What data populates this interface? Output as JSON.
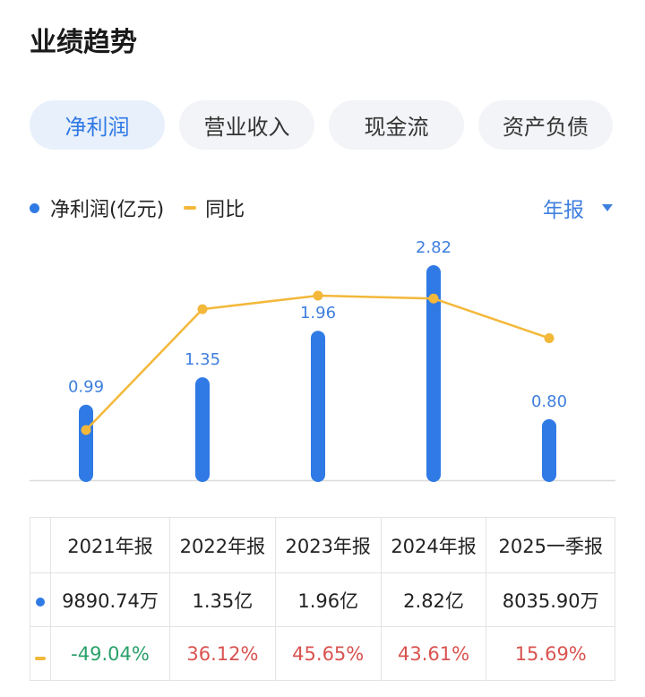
{
  "title": "业绩趋势",
  "tabs": [
    {
      "label": "净利润",
      "active": true
    },
    {
      "label": "营业收入",
      "active": false
    },
    {
      "label": "现金流",
      "active": false
    },
    {
      "label": "资产负债",
      "active": false
    }
  ],
  "legend": {
    "bar_label": "净利润(亿元)",
    "line_label": "同比"
  },
  "period_selector": "年报",
  "colors": {
    "bar": "#2f7ae5",
    "line": "#f3b83a",
    "positive": "#d9534f",
    "negative": "#2aa06a",
    "accent": "#3f7fde"
  },
  "chart_data": {
    "type": "bar",
    "categories": [
      "2021年报",
      "2022年报",
      "2023年报",
      "2024年报",
      "2025一季报"
    ],
    "series": [
      {
        "name": "净利润(亿元)",
        "type": "bar",
        "values": [
          0.99,
          1.35,
          1.96,
          2.82,
          0.8
        ],
        "labels": [
          "0.99",
          "1.35",
          "1.96",
          "2.82",
          "0.80"
        ]
      },
      {
        "name": "同比",
        "type": "line",
        "values": [
          -49.04,
          36.12,
          45.65,
          43.61,
          15.69
        ]
      }
    ],
    "grid": false,
    "legend_position": "top-left"
  },
  "table": {
    "headers": [
      "2021年报",
      "2022年报",
      "2023年报",
      "2024年报",
      "2025一季报"
    ],
    "profit_row": [
      "9890.74万",
      "1.35亿",
      "1.96亿",
      "2.82亿",
      "8035.90万"
    ],
    "yoy_row": [
      "-49.04%",
      "36.12%",
      "45.65%",
      "43.61%",
      "15.69%"
    ]
  }
}
